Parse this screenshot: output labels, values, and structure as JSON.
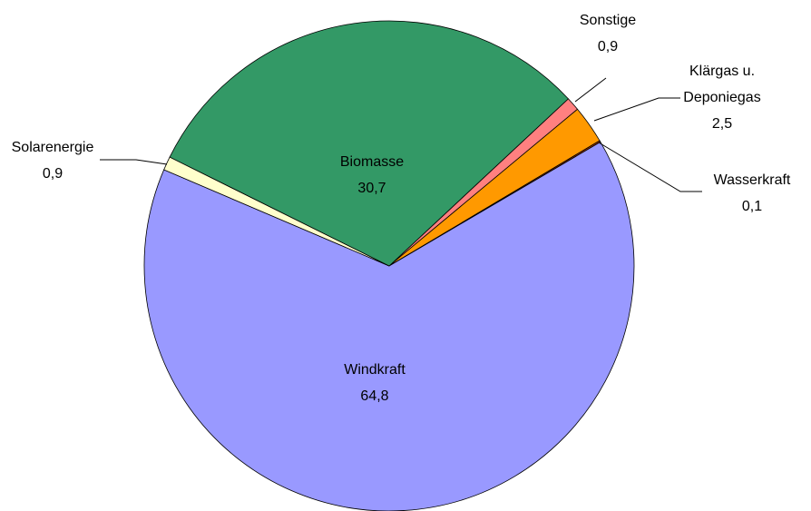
{
  "chart_data": {
    "type": "pie",
    "categories": [
      "Sonstige",
      "Klärgas u.\nDeponiegas",
      "Wasserkraft",
      "Windkraft",
      "Solarenergie",
      "Biomasse"
    ],
    "values": [
      0.9,
      2.5,
      0.1,
      64.8,
      0.9,
      30.7
    ],
    "value_labels": [
      "0,9",
      "2,5",
      "0,1",
      "64,8",
      "0,9",
      "30,7"
    ],
    "colors": [
      "#ff8080",
      "#ff9900",
      "#993300",
      "#9999ff",
      "#ffffcc",
      "#339966"
    ]
  }
}
